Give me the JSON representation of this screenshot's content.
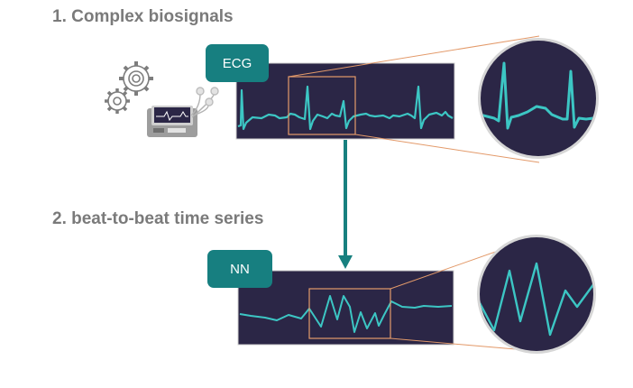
{
  "section1": {
    "title": "1. Complex biosignals",
    "tag": "ECG"
  },
  "section2": {
    "title": "2. beat-to-beat time series",
    "tag": "NN"
  },
  "colors": {
    "panel": "#2b2646",
    "signal": "#3cc6c4",
    "tag": "#177f80",
    "highlight": "#e39a6a",
    "arrow": "#17807f",
    "heading": "#7a7a7a",
    "magnifier_border": "#d6d6d6"
  },
  "icons": [
    "gears-icon",
    "ecg-monitor-icon",
    "electrodes-icon",
    "down-arrow-icon"
  ]
}
